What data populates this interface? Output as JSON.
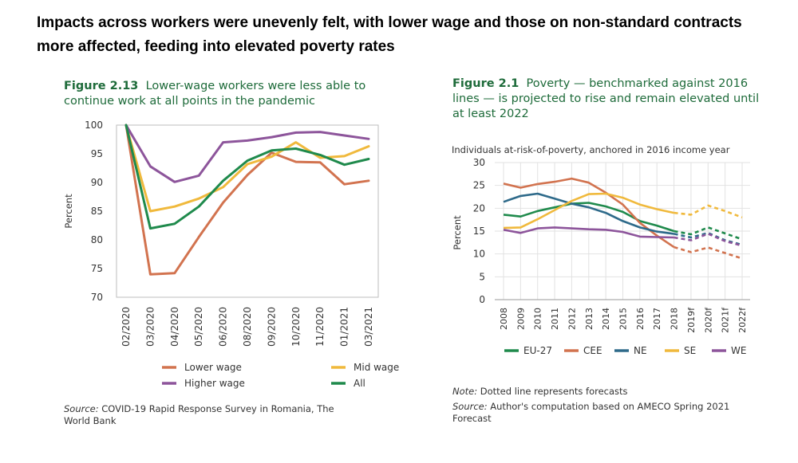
{
  "headline": "Impacts across workers were unevenly felt, with lower wage and those on non-standard contracts more affected, feeding into elevated poverty rates",
  "figures": {
    "left": {
      "number": "Figure 2.13",
      "title": "Lower-wage workers were less able to continue work at all points in the pandemic",
      "source_label": "Source:",
      "source_text": "COVID-19 Rapid Response Survey in Romania, The World Bank"
    },
    "right": {
      "number": "Figure 2.1",
      "title": "Poverty — benchmarked against 2016 lines — is projected to rise and remain elevated until at least 2022",
      "note_label": "Note:",
      "note_text": "Dotted line represents forecasts",
      "source_label": "Source:",
      "source_text": "Author's computation based on AMECO Spring 2021 Forecast"
    }
  },
  "chart_data": [
    {
      "type": "line",
      "title": "Lower-wage workers were less able to continue work at all points in the pandemic",
      "xlabel": "",
      "ylabel": "Percent",
      "ylim": [
        70,
        100
      ],
      "yticks": [
        100,
        95,
        90,
        85,
        80,
        75,
        70
      ],
      "grid": false,
      "legend": "bottom",
      "categories": [
        "02/2020",
        "03/2020",
        "04/2020",
        "05/2020",
        "06/2020",
        "08/2020",
        "09/2020",
        "10/2020",
        "11/2020",
        "01/2021",
        "03/2021"
      ],
      "series": [
        {
          "name": "Lower wage",
          "color": "#d2734f",
          "values": [
            100,
            74.0,
            74.2,
            80.5,
            86.5,
            91.3,
            95.2,
            93.6,
            93.5,
            89.7,
            90.3
          ]
        },
        {
          "name": "Mid wage",
          "color": "#f0b93c",
          "values": [
            100,
            85.0,
            85.8,
            87.2,
            89.2,
            93.2,
            94.5,
            97.0,
            94.3,
            94.6,
            96.3
          ]
        },
        {
          "name": "Higher wage",
          "color": "#8d559b",
          "values": [
            100,
            92.8,
            90.1,
            91.2,
            97.0,
            97.3,
            97.9,
            98.7,
            98.8,
            98.2,
            97.6
          ]
        },
        {
          "name": "All",
          "color": "#1f8a4c",
          "values": [
            100,
            82.0,
            82.8,
            85.8,
            90.3,
            93.8,
            95.6,
            95.9,
            94.8,
            93.1,
            94.1
          ]
        }
      ]
    },
    {
      "type": "line",
      "title": "Individuals at-risk-of-poverty, anchored in 2016 income year",
      "xlabel": "",
      "ylabel": "Percent",
      "ylim": [
        0,
        30
      ],
      "yticks": [
        30,
        25,
        20,
        15,
        10,
        5,
        0
      ],
      "grid": true,
      "legend": "bottom",
      "categories": [
        "2008",
        "2009",
        "2010",
        "2011",
        "2012",
        "2013",
        "2014",
        "2015",
        "2016",
        "2017",
        "2018",
        "2019f",
        "2020f",
        "2021f",
        "2022f"
      ],
      "forecast_from_index": 10,
      "series": [
        {
          "name": "EU-27",
          "color": "#1f8a4c",
          "values": [
            18.6,
            18.2,
            19.4,
            20.2,
            21.0,
            21.2,
            20.4,
            19.2,
            17.2,
            16.2,
            15.0,
            14.3,
            15.8,
            14.5,
            13.2
          ]
        },
        {
          "name": "CEE",
          "color": "#d2734f",
          "values": [
            25.4,
            24.5,
            25.3,
            25.8,
            26.5,
            25.6,
            23.4,
            20.8,
            16.8,
            14.0,
            11.5,
            10.4,
            11.4,
            10.2,
            9.0
          ]
        },
        {
          "name": "NE",
          "color": "#2e6a8a",
          "values": [
            21.4,
            22.7,
            23.2,
            22.1,
            21.0,
            20.2,
            19.0,
            17.2,
            15.8,
            14.9,
            14.4,
            13.6,
            14.6,
            13.0,
            12.0
          ]
        },
        {
          "name": "SE",
          "color": "#f0b93c",
          "values": [
            15.7,
            15.8,
            17.6,
            19.6,
            21.6,
            23.1,
            23.2,
            22.3,
            20.8,
            19.8,
            19.0,
            18.6,
            20.6,
            19.4,
            18.0
          ]
        },
        {
          "name": "WE",
          "color": "#8d559b",
          "values": [
            15.3,
            14.6,
            15.6,
            15.8,
            15.6,
            15.4,
            15.3,
            14.8,
            13.8,
            13.7,
            13.6,
            13.0,
            14.4,
            12.8,
            11.8
          ]
        }
      ]
    }
  ]
}
